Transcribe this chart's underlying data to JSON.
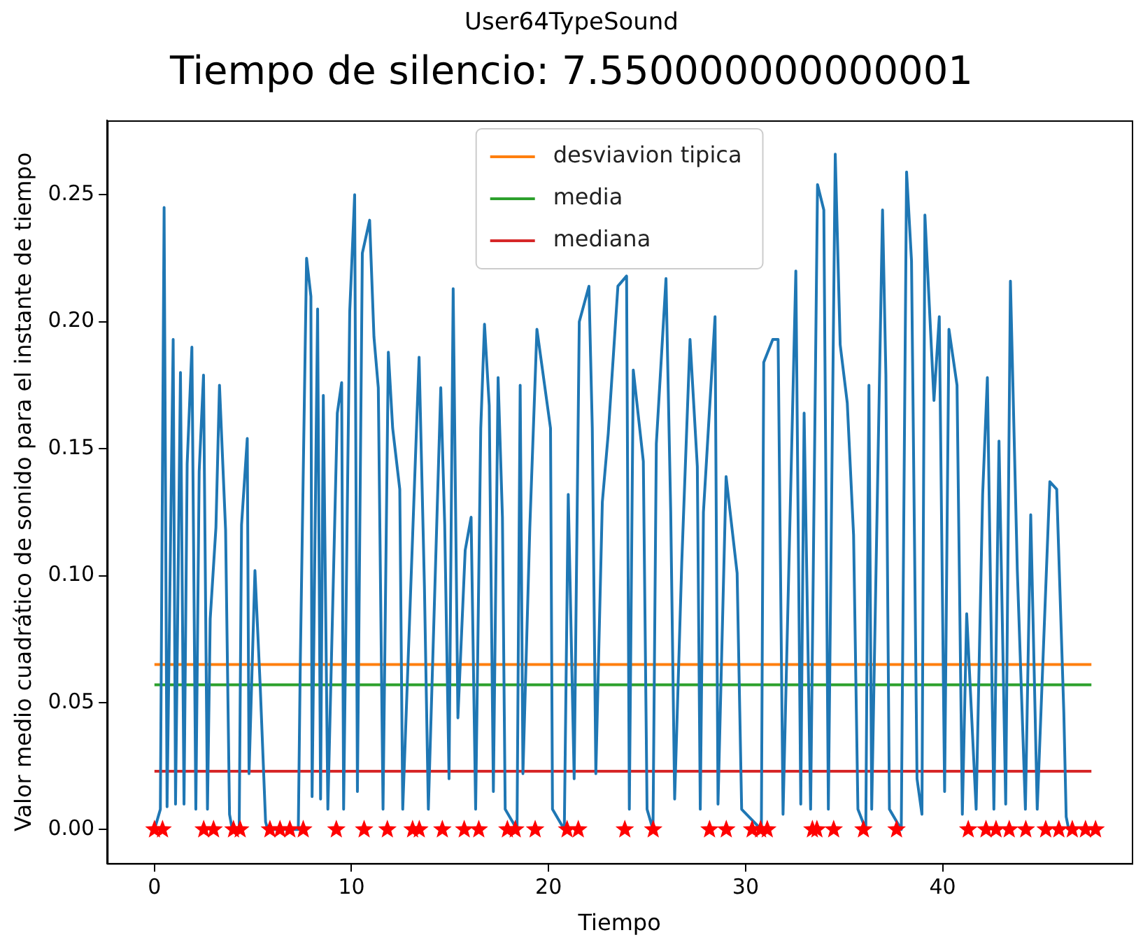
{
  "chart_data": {
    "type": "line",
    "subtitle": "User64TypeSound",
    "title": "Tiempo de silencio: 7.550000000000001",
    "xlabel": "Tiempo",
    "ylabel": "Valor medio cuadrático de sonido para el instante de tiempo",
    "xlim": [
      -2.4,
      49.6
    ],
    "xticks": [
      0,
      10,
      20,
      30,
      40
    ],
    "ylim": [
      -0.0133,
      0.2793
    ],
    "yticks": [
      {
        "value": 0,
        "label": "0.00"
      },
      0.05,
      {
        "value": 0.1,
        "label": "0.10"
      },
      0.15,
      {
        "value": 0.2,
        "label": "0.20"
      },
      0.25
    ],
    "grid": false,
    "legend": "top",
    "line_style": "solid",
    "marker": "none",
    "series": [
      {
        "color": "#1f77b4",
        "x": [
          0,
          0.3,
          0.49,
          0.64,
          0.95,
          1.07,
          1.32,
          1.5,
          1.66,
          1.9,
          2.1,
          2.27,
          2.49,
          2.69,
          2.83,
          3.12,
          3.3,
          3.61,
          3.81,
          3.95,
          4.3,
          4.42,
          4.71,
          4.8,
          5.1,
          5.37,
          5.64,
          5.75,
          7.3,
          7.4,
          7.72,
          7.94,
          8.0,
          8.28,
          8.43,
          8.57,
          8.8,
          9.28,
          9.5,
          9.6,
          9.91,
          10.16,
          10.3,
          10.55,
          10.92,
          11.14,
          11.36,
          11.6,
          11.87,
          12.09,
          12.45,
          12.6,
          13.43,
          13.7,
          13.9,
          14.53,
          14.73,
          14.95,
          15.16,
          15.4,
          15.77,
          16.07,
          16.3,
          16.56,
          16.75,
          16.99,
          17.2,
          17.44,
          17.66,
          17.8,
          18.4,
          18.56,
          18.7,
          19.05,
          19.41,
          19.8,
          20.1,
          20.2,
          20.8,
          21.0,
          21.3,
          21.56,
          22.05,
          22.22,
          22.4,
          22.73,
          23.03,
          23.52,
          23.96,
          24.1,
          24.3,
          24.81,
          25.0,
          25.3,
          25.47,
          25.96,
          26.2,
          26.4,
          26.76,
          27.18,
          27.55,
          27.7,
          27.86,
          28.45,
          28.6,
          29.01,
          29.57,
          29.8,
          30.8,
          30.92,
          31.38,
          31.65,
          31.9,
          32.55,
          32.8,
          32.97,
          33.3,
          33.65,
          33.97,
          34.2,
          34.55,
          34.8,
          35.16,
          35.48,
          35.7,
          36.1,
          36.26,
          36.4,
          36.95,
          37.12,
          37.3,
          37.9,
          38.17,
          38.42,
          38.7,
          38.95,
          39.1,
          39.56,
          39.83,
          40.1,
          40.32,
          40.73,
          41.0,
          41.22,
          41.7,
          42.03,
          42.27,
          42.6,
          42.86,
          43.2,
          43.44,
          43.79,
          44.2,
          44.47,
          44.8,
          45.44,
          45.79,
          46.15,
          46.27,
          46.4
        ],
        "values": [
          0,
          0.008,
          0.245,
          0.009,
          0.193,
          0.01,
          0.18,
          0.01,
          0.144,
          0.19,
          0.008,
          0.141,
          0.179,
          0.008,
          0.083,
          0.119,
          0.175,
          0.118,
          0.006,
          0,
          0,
          0.12,
          0.154,
          0.022,
          0.102,
          0.056,
          0.003,
          0,
          0,
          0.065,
          0.225,
          0.21,
          0.013,
          0.205,
          0.012,
          0.171,
          0.008,
          0.164,
          0.176,
          0.008,
          0.204,
          0.25,
          0.015,
          0.227,
          0.24,
          0.194,
          0.174,
          0.008,
          0.188,
          0.158,
          0.134,
          0.008,
          0.186,
          0.096,
          0.008,
          0.174,
          0.12,
          0.02,
          0.213,
          0.044,
          0.11,
          0.123,
          0.008,
          0.158,
          0.199,
          0.167,
          0.015,
          0.178,
          0.123,
          0.008,
          0,
          0.175,
          0.022,
          0.119,
          0.197,
          0.175,
          0.158,
          0.008,
          0,
          0.132,
          0.02,
          0.2,
          0.214,
          0.158,
          0.022,
          0.129,
          0.156,
          0.214,
          0.218,
          0.008,
          0.181,
          0.145,
          0.008,
          0,
          0.152,
          0.217,
          0.125,
          0.012,
          0.105,
          0.193,
          0.143,
          0.008,
          0.125,
          0.202,
          0.01,
          0.139,
          0.101,
          0.008,
          0,
          0.184,
          0.193,
          0.193,
          0.006,
          0.22,
          0.01,
          0.164,
          0.008,
          0.254,
          0.244,
          0.008,
          0.266,
          0.191,
          0.168,
          0.116,
          0.008,
          0,
          0.175,
          0.008,
          0.244,
          0.179,
          0.008,
          0,
          0.259,
          0.224,
          0.02,
          0.006,
          0.242,
          0.169,
          0.202,
          0.015,
          0.197,
          0.175,
          0.006,
          0.085,
          0.008,
          0.132,
          0.178,
          0.008,
          0.153,
          0.01,
          0.216,
          0.102,
          0.008,
          0.124,
          0.008,
          0.137,
          0.134,
          0.046,
          0.005,
          0
        ]
      },
      {
        "name": "desviavion tipica",
        "color": "#ff7f0e",
        "x": [
          0,
          47.55
        ],
        "values": [
          0.065,
          0.065
        ]
      },
      {
        "name": "media",
        "color": "#2ca02c",
        "x": [
          0,
          47.55
        ],
        "values": [
          0.057,
          0.057
        ]
      },
      {
        "name": "mediana",
        "color": "#d62728",
        "x": [
          0,
          47.55
        ],
        "values": [
          0.023,
          0.023
        ]
      },
      {
        "type": "scatter",
        "marker": "star",
        "color": "#ff0000",
        "x": [
          0,
          0.41,
          2.5,
          3.0,
          4.01,
          4.35,
          5.86,
          6.37,
          6.87,
          7.55,
          9.23,
          10.64,
          11.82,
          13.1,
          13.44,
          14.61,
          15.72,
          16.46,
          17.91,
          18.31,
          19.32,
          20.94,
          21.51,
          23.87,
          25.31,
          28.17,
          29.02,
          30.33,
          30.76,
          31.1,
          33.39,
          33.62,
          34.47,
          35.98,
          37.66,
          41.3,
          42.2,
          42.71,
          43.38,
          44.22,
          45.23,
          45.9,
          46.58,
          47.25,
          47.76
        ],
        "values": [
          0,
          0,
          0,
          0,
          0,
          0,
          0,
          0,
          0,
          0,
          0,
          0,
          0,
          0,
          0,
          0,
          0,
          0,
          0,
          0,
          0,
          0,
          0,
          0,
          0,
          0,
          0,
          0,
          0,
          0,
          0,
          0,
          0,
          0,
          0,
          0,
          0,
          0,
          0,
          0,
          0,
          0,
          0,
          0,
          0
        ]
      }
    ]
  }
}
